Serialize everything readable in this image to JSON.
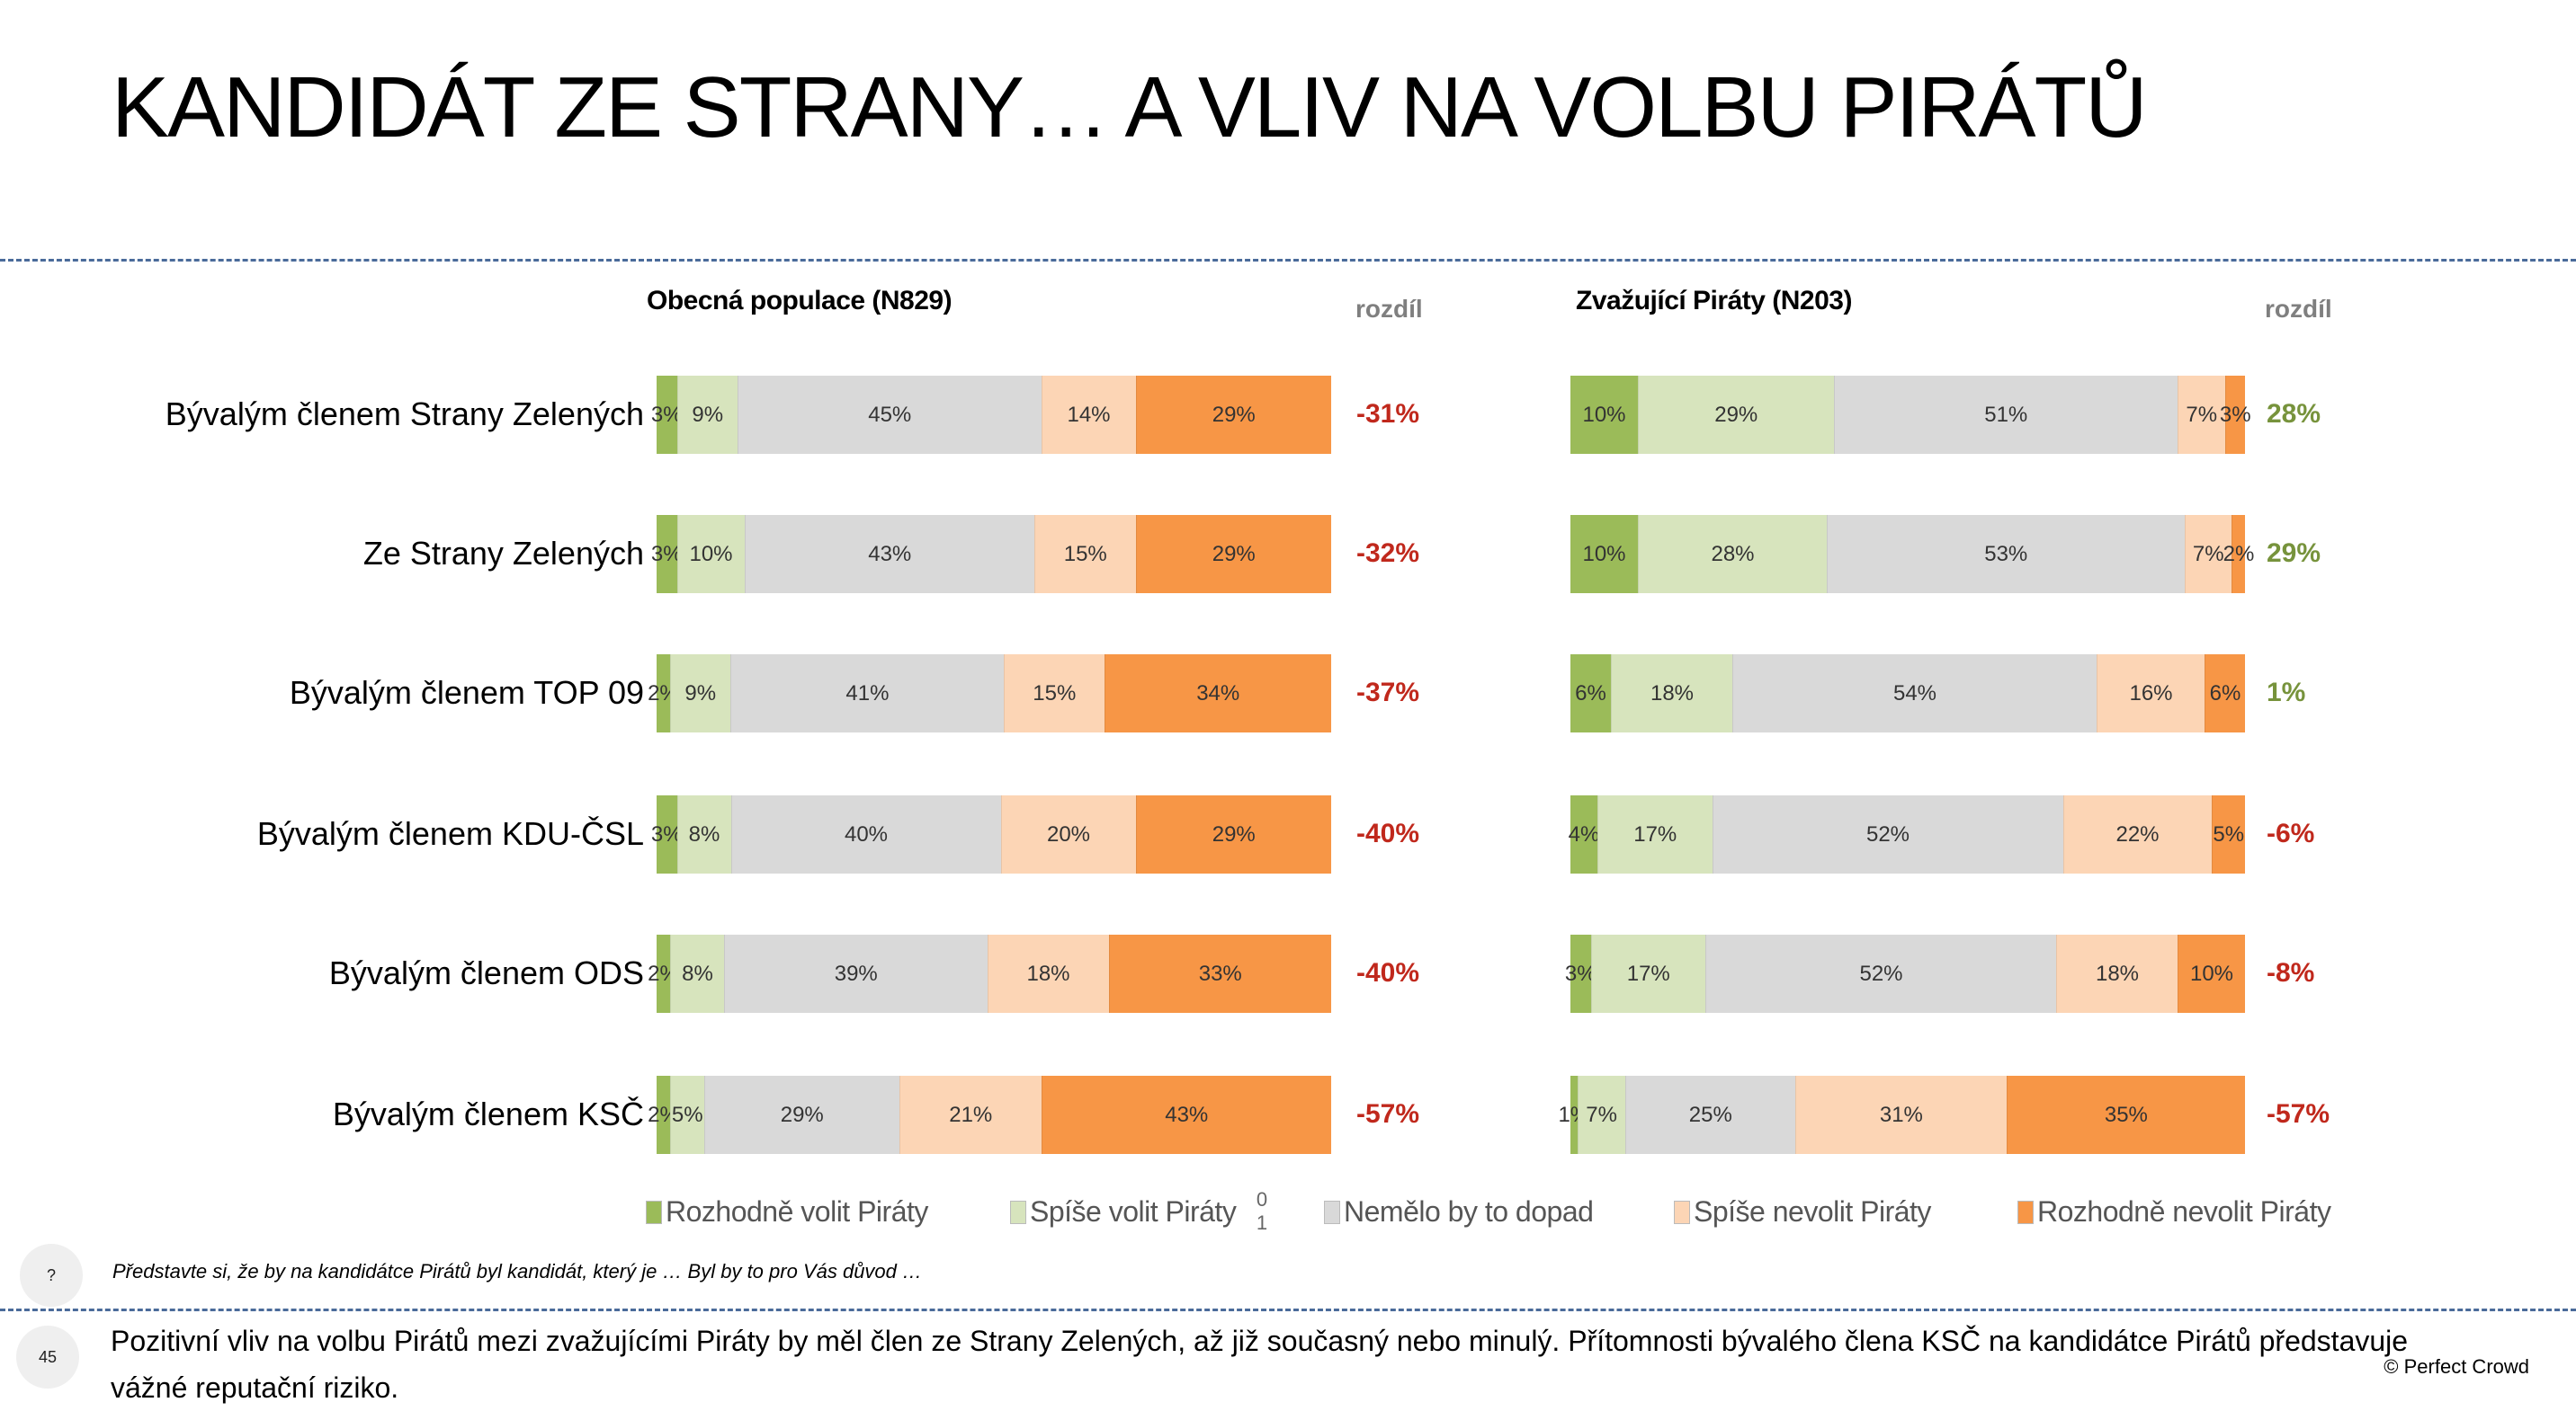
{
  "title": "KANDIDÁT ZE STRANY… A VLIV NA VOLBU PIRÁTŮ",
  "chart_data": {
    "type": "bar",
    "stacked": true,
    "orientation": "horizontal",
    "categories": [
      "Bývalým členem Strany Zelených",
      "Ze Strany Zelených",
      "Bývalým členem TOP 09",
      "Bývalým členem KDU-ČSL",
      "Bývalým členem ODS",
      "Bývalým členem KSČ"
    ],
    "legend": [
      {
        "name": "Rozhodně volit Piráty",
        "color": "#9bbb59"
      },
      {
        "name": "Spíše volit Piráty",
        "color": "#d7e4bd"
      },
      {
        "name": "Nemělo by to dopad",
        "color": "#d9d9d9"
      },
      {
        "name": "Spíše nevolit Piráty",
        "color": "#fcd5b5"
      },
      {
        "name": "Rozhodně nevolit Piráty",
        "color": "#f79646"
      }
    ],
    "legend_artifact": [
      "0",
      "1"
    ],
    "legend_position": "bottom",
    "diff_header": "rozdíl",
    "panels": [
      {
        "title": "Obecná populace (N829)",
        "xlim": [
          0,
          100
        ],
        "values": [
          [
            3,
            9,
            45,
            14,
            29
          ],
          [
            3,
            10,
            43,
            15,
            29
          ],
          [
            2,
            9,
            41,
            15,
            34
          ],
          [
            3,
            8,
            40,
            20,
            29
          ],
          [
            2,
            8,
            39,
            18,
            33
          ],
          [
            2,
            5,
            29,
            21,
            43
          ]
        ],
        "diffs": [
          "-31%",
          "-32%",
          "-37%",
          "-40%",
          "-40%",
          "-57%"
        ],
        "diff_colors": [
          "#c0281c",
          "#c0281c",
          "#c0281c",
          "#c0281c",
          "#c0281c",
          "#c0281c"
        ]
      },
      {
        "title": "Zvažující Piráty (N203)",
        "xlim": [
          0,
          100
        ],
        "values": [
          [
            10,
            29,
            51,
            7,
            3
          ],
          [
            10,
            28,
            53,
            7,
            2
          ],
          [
            6,
            18,
            54,
            16,
            6
          ],
          [
            4,
            17,
            52,
            22,
            5
          ],
          [
            3,
            17,
            52,
            18,
            10
          ],
          [
            1,
            7,
            25,
            31,
            35
          ]
        ],
        "diffs": [
          "28%",
          "29%",
          "1%",
          "-6%",
          "-8%",
          "-57%"
        ],
        "diff_colors": [
          "#77933c",
          "#77933c",
          "#77933c",
          "#c0281c",
          "#c0281c",
          "#c0281c"
        ]
      }
    ]
  },
  "footer": {
    "question_icon": "?",
    "question": "Představte si, že by na kandidátce Pirátů byl kandidát, který je … Byl by to pro Vás důvod …",
    "page_number": "45",
    "conclusion": "Pozitivní vliv na volbu Pirátů mezi zvažujícími Piráty by měl člen ze Strany Zelených, až již současný nebo minulý. Přítomnosti bývalého člena KSČ na kandidátce Pirátů představuje vážné reputační riziko.",
    "copyright": "© Perfect Crowd"
  }
}
